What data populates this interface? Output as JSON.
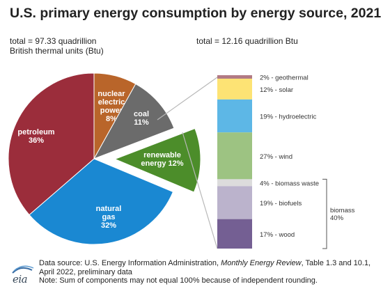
{
  "title": "U.S. primary energy consumption by energy source, 2021",
  "left_total_line1": "total = 97.33 quadrillion",
  "left_total_line2": "British thermal units (Btu)",
  "right_total": "total = 12.16 quadrillion Btu",
  "footer": {
    "source_prefix": "Data source: U.S. Energy Information Administration, ",
    "source_italic": "Monthly Energy Review",
    "source_suffix": ", Table 1.3 and 10.1, April 2022, preliminary data",
    "note": "Note: Sum of components may not equal 100% because of independent rounding."
  },
  "logo_text": "eia",
  "colors": {
    "petroleum": "#9b2d3b",
    "natural_gas": "#1a88d2",
    "nuclear": "#b9652a",
    "coal": "#6b6b6b",
    "renewable": "#4c8d2a",
    "geothermal": "#b27a84",
    "solar": "#fde374",
    "hydroelectric": "#5db7e6",
    "wind": "#9dc382",
    "biomass_waste": "#dcdcdc",
    "biofuels": "#bbb3cc",
    "wood": "#745f93"
  },
  "chart_data": [
    {
      "type": "pie",
      "total_label": "total = 97.33 quadrillion British thermal units (Btu)",
      "slices": [
        {
          "key": "nuclear",
          "label_lines": [
            "nuclear",
            "electric",
            "power",
            "8%"
          ],
          "value": 8
        },
        {
          "key": "coal",
          "label_lines": [
            "coal",
            "11%"
          ],
          "value": 11
        },
        {
          "key": "renewable",
          "label_lines": [
            "renewable",
            "energy 12%"
          ],
          "value": 12,
          "exploded": true
        },
        {
          "key": "natural_gas",
          "label_lines": [
            "natural",
            "gas",
            "32%"
          ],
          "value": 32
        },
        {
          "key": "petroleum",
          "label_lines": [
            "petroleum",
            "36%"
          ],
          "value": 36
        }
      ]
    },
    {
      "type": "bar",
      "orientation": "stacked-vertical",
      "total_label": "total = 12.16 quadrillion Btu",
      "segments": [
        {
          "key": "geothermal",
          "label": "2% - geothermal",
          "value": 2
        },
        {
          "key": "solar",
          "label": "12% - solar",
          "value": 12
        },
        {
          "key": "hydroelectric",
          "label": "19% - hydroelectric",
          "value": 19
        },
        {
          "key": "wind",
          "label": "27% - wind",
          "value": 27
        },
        {
          "key": "biomass_waste",
          "label": "4% - biomass waste",
          "value": 4
        },
        {
          "key": "biofuels",
          "label": "19% - biofuels",
          "value": 19
        },
        {
          "key": "wood",
          "label": "17% - wood",
          "value": 17
        }
      ],
      "group": {
        "label_lines": [
          "biomass",
          "40%"
        ],
        "members": [
          "biomass_waste",
          "biofuels",
          "wood"
        ]
      }
    }
  ]
}
